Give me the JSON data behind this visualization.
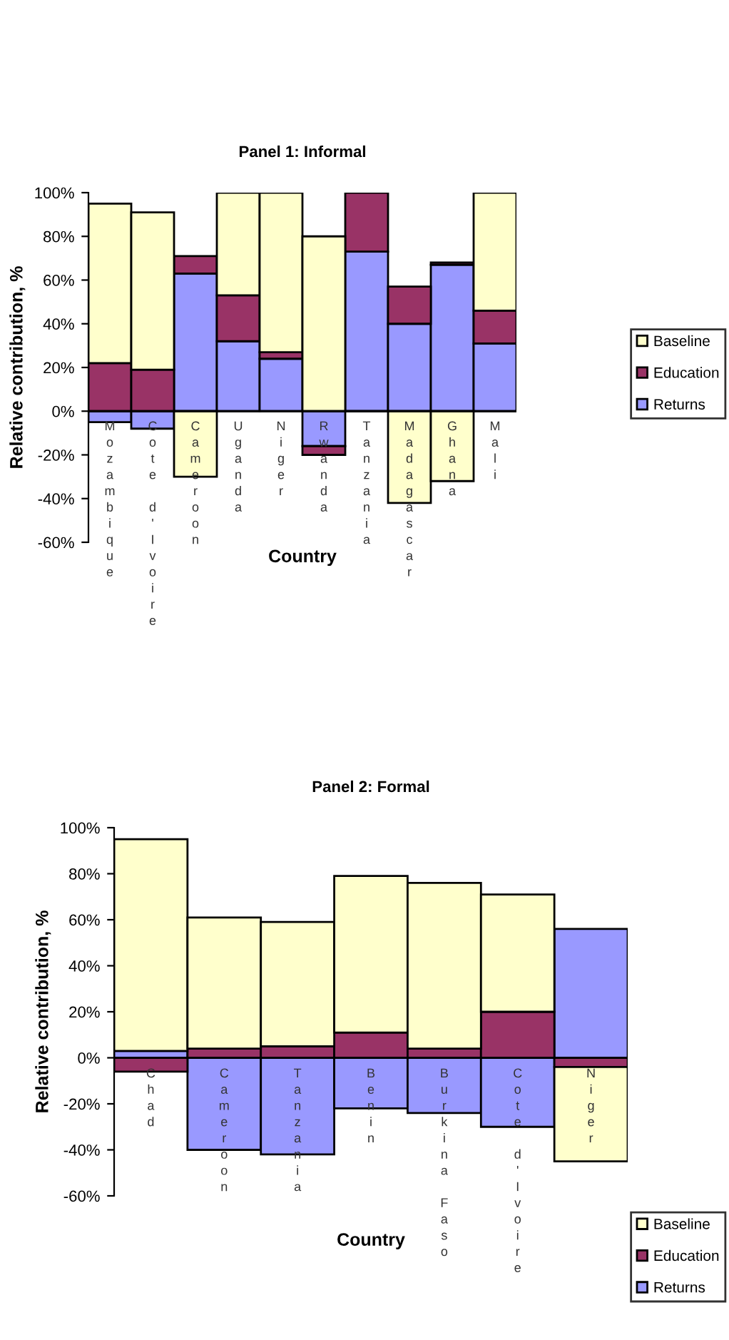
{
  "chart_data": [
    {
      "type": "bar",
      "stacked": true,
      "title": "Panel 1: Informal",
      "xlabel": "Country",
      "ylabel": "Relative contribution, %",
      "categories": [
        "Mozambique",
        "Cote d'Ivoire",
        "Cameroon",
        "Uganda",
        "Niger",
        "Rwanda",
        "Tanzania",
        "Madagascar",
        "Ghana",
        "Mali"
      ],
      "series": [
        {
          "name": "Returns",
          "color": "#9999ff",
          "values": [
            -5,
            -8,
            63,
            32,
            24,
            -16,
            73,
            40,
            67,
            31
          ]
        },
        {
          "name": "Education",
          "color": "#993366",
          "values": [
            22,
            19,
            8,
            21,
            3,
            -4,
            27,
            17,
            1,
            15
          ]
        },
        {
          "name": "Baseline",
          "color": "#ffffcc",
          "values": [
            73,
            72,
            -30,
            47,
            73,
            80,
            null,
            -42,
            -32,
            54
          ]
        }
      ],
      "ylim": [
        -60,
        100
      ],
      "yticks": [
        {
          "value": -60,
          "label": "-60%"
        },
        {
          "value": -40,
          "label": "-40%"
        },
        {
          "value": -20,
          "label": "-20%"
        },
        {
          "value": 0,
          "label": "0%"
        },
        {
          "value": 20,
          "label": "20%"
        },
        {
          "value": 40,
          "label": "40%"
        },
        {
          "value": 60,
          "label": "60%"
        },
        {
          "value": 80,
          "label": "80%"
        },
        {
          "value": 100,
          "label": "100%"
        }
      ],
      "grid": false,
      "legend": "right"
    },
    {
      "type": "bar",
      "stacked": true,
      "title": "Panel 2: Formal",
      "xlabel": "Country",
      "ylabel": "Relative contribution, %",
      "categories": [
        "Chad",
        "Cameroon",
        "Tanzania",
        "Benin",
        "Burkina Faso",
        "Cote d'Ivoire",
        "Niger"
      ],
      "series": [
        {
          "name": "Returns",
          "color": "#9999ff",
          "values": [
            3,
            -40,
            -42,
            -22,
            -24,
            -30,
            56
          ]
        },
        {
          "name": "Education",
          "color": "#993366",
          "values": [
            -6,
            4,
            5,
            11,
            4,
            20,
            -4
          ]
        },
        {
          "name": "Baseline",
          "color": "#ffffcc",
          "values": [
            92,
            57,
            54,
            68,
            72,
            51,
            -41
          ]
        }
      ],
      "ylim": [
        -60,
        100
      ],
      "yticks": [
        {
          "value": -60,
          "label": "-60%"
        },
        {
          "value": -40,
          "label": "-40%"
        },
        {
          "value": -20,
          "label": "-20%"
        },
        {
          "value": 0,
          "label": "0%"
        },
        {
          "value": 20,
          "label": "20%"
        },
        {
          "value": 40,
          "label": "40%"
        },
        {
          "value": 60,
          "label": "60%"
        },
        {
          "value": 80,
          "label": "80%"
        },
        {
          "value": 100,
          "label": "100%"
        }
      ],
      "grid": false,
      "legend": "bottom right"
    }
  ]
}
